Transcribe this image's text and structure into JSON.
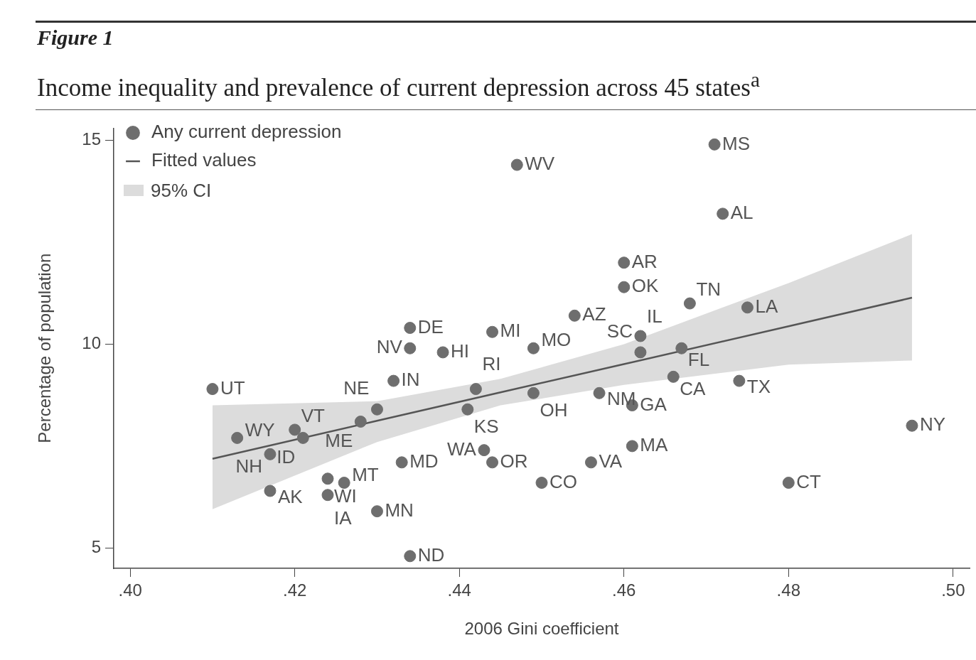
{
  "chart_data": {
    "type": "scatter",
    "title": "Figure 1",
    "subtitle": "Income inequality and prevalence of current depression across 45 states$^{a}$",
    "xlabel": "2006 Gini coefficient",
    "ylabel": "Percentage of population",
    "xlim": [
      0.398,
      0.502
    ],
    "xticks": [
      {
        "value": 0.4,
        "label": ".40"
      },
      {
        "value": 0.42,
        "label": ".42"
      },
      {
        "value": 0.44,
        "label": ".44"
      },
      {
        "value": 0.46,
        "label": ".46"
      },
      {
        "value": 0.48,
        "label": ".48"
      },
      {
        "value": 0.5,
        "label": ".50"
      }
    ],
    "ylim": [
      4.5,
      15.3
    ],
    "yticks": [
      5,
      10,
      15
    ],
    "grid": false,
    "legend": "top left",
    "series": [
      {
        "name": "Any current depression",
        "type": "scatter",
        "marker": "circle",
        "color": "#6e6e6e",
        "x": [
          0.471,
          0.447,
          0.472,
          0.46,
          0.46,
          0.468,
          0.475,
          0.454,
          0.434,
          0.444,
          0.462,
          0.434,
          0.438,
          0.449,
          0.462,
          0.467,
          0.466,
          0.474,
          0.432,
          0.41,
          0.442,
          0.449,
          0.457,
          0.461,
          0.43,
          0.441,
          0.428,
          0.495,
          0.42,
          0.413,
          0.421,
          0.461,
          0.443,
          0.417,
          0.433,
          0.444,
          0.456,
          0.424,
          0.426,
          0.45,
          0.48,
          0.417,
          0.424,
          0.43,
          0.434
        ],
        "values": [
          14.9,
          14.4,
          13.2,
          12.0,
          11.4,
          11.0,
          10.9,
          10.7,
          10.4,
          10.3,
          10.2,
          9.9,
          9.8,
          9.9,
          9.8,
          9.9,
          9.2,
          9.1,
          9.1,
          8.9,
          8.9,
          8.8,
          8.8,
          8.5,
          8.4,
          8.4,
          8.1,
          8.0,
          7.9,
          7.7,
          7.7,
          7.5,
          7.4,
          7.3,
          7.1,
          7.1,
          7.1,
          6.7,
          6.6,
          6.6,
          6.6,
          6.4,
          6.3,
          5.9,
          4.8
        ]
      },
      {
        "name": "Fitted values",
        "type": "line",
        "line_style": "solid",
        "color": "#555555",
        "x": [
          0.41,
          0.43,
          0.445,
          0.46,
          0.48,
          0.495
        ],
        "values": [
          7.19,
          8.12,
          8.82,
          9.51,
          10.44,
          11.14
        ],
        "lower": [
          5.95,
          7.6,
          8.5,
          9.0,
          9.5,
          9.6
        ],
        "upper": [
          8.5,
          8.6,
          9.15,
          10.0,
          11.5,
          12.7
        ]
      }
    ],
    "annotations": [
      "95% CI",
      {
        "text": "MS",
        "x": 0.471,
        "y": 14.9
      },
      {
        "text": "WV",
        "x": 0.447,
        "y": 14.4
      },
      {
        "text": "AL",
        "x": 0.472,
        "y": 13.2
      },
      {
        "text": "AR",
        "x": 0.46,
        "y": 12.0
      },
      {
        "text": "OK",
        "x": 0.46,
        "y": 11.4
      },
      {
        "text": "TN",
        "x": 0.468,
        "y": 11.0
      },
      {
        "text": "LA",
        "x": 0.475,
        "y": 10.9
      },
      {
        "text": "AZ",
        "x": 0.454,
        "y": 10.7
      },
      {
        "text": "DE",
        "x": 0.434,
        "y": 10.4
      },
      {
        "text": "MI",
        "x": 0.444,
        "y": 10.3
      },
      {
        "text": "IL",
        "x": 0.462,
        "y": 10.2
      },
      {
        "text": "NV",
        "x": 0.434,
        "y": 9.9
      },
      {
        "text": "HI",
        "x": 0.438,
        "y": 9.8
      },
      {
        "text": "MO",
        "x": 0.449,
        "y": 9.9
      },
      {
        "text": "SC",
        "x": 0.462,
        "y": 9.8
      },
      {
        "text": "FL",
        "x": 0.467,
        "y": 9.9
      },
      {
        "text": "CA",
        "x": 0.466,
        "y": 9.2
      },
      {
        "text": "TX",
        "x": 0.474,
        "y": 9.1
      },
      {
        "text": "IN",
        "x": 0.432,
        "y": 9.1
      },
      {
        "text": "UT",
        "x": 0.41,
        "y": 8.9
      },
      {
        "text": "RI",
        "x": 0.442,
        "y": 8.9
      },
      {
        "text": "OH",
        "x": 0.449,
        "y": 8.8
      },
      {
        "text": "NM",
        "x": 0.457,
        "y": 8.8
      },
      {
        "text": "GA",
        "x": 0.461,
        "y": 8.5
      },
      {
        "text": "NE",
        "x": 0.43,
        "y": 8.4
      },
      {
        "text": "KS",
        "x": 0.441,
        "y": 8.4
      },
      {
        "text": "ME",
        "x": 0.428,
        "y": 8.1
      },
      {
        "text": "NY",
        "x": 0.495,
        "y": 8.0
      },
      {
        "text": "VT",
        "x": 0.42,
        "y": 7.9
      },
      {
        "text": "WY",
        "x": 0.413,
        "y": 7.7
      },
      {
        "text": "ID",
        "x": 0.421,
        "y": 7.7
      },
      {
        "text": "MA",
        "x": 0.461,
        "y": 7.5
      },
      {
        "text": "WA",
        "x": 0.443,
        "y": 7.4
      },
      {
        "text": "NH",
        "x": 0.417,
        "y": 7.3
      },
      {
        "text": "MD",
        "x": 0.433,
        "y": 7.1
      },
      {
        "text": "OR",
        "x": 0.444,
        "y": 7.1
      },
      {
        "text": "VA",
        "x": 0.456,
        "y": 7.1
      },
      {
        "text": "WI",
        "x": 0.424,
        "y": 6.7
      },
      {
        "text": "MT",
        "x": 0.426,
        "y": 6.6
      },
      {
        "text": "CO",
        "x": 0.45,
        "y": 6.6
      },
      {
        "text": "CT",
        "x": 0.48,
        "y": 6.6
      },
      {
        "text": "AK",
        "x": 0.417,
        "y": 6.4
      },
      {
        "text": "IA",
        "x": 0.424,
        "y": 6.3
      },
      {
        "text": "MN",
        "x": 0.43,
        "y": 5.9
      },
      {
        "text": "ND",
        "x": 0.434,
        "y": 4.8
      }
    ]
  }
}
